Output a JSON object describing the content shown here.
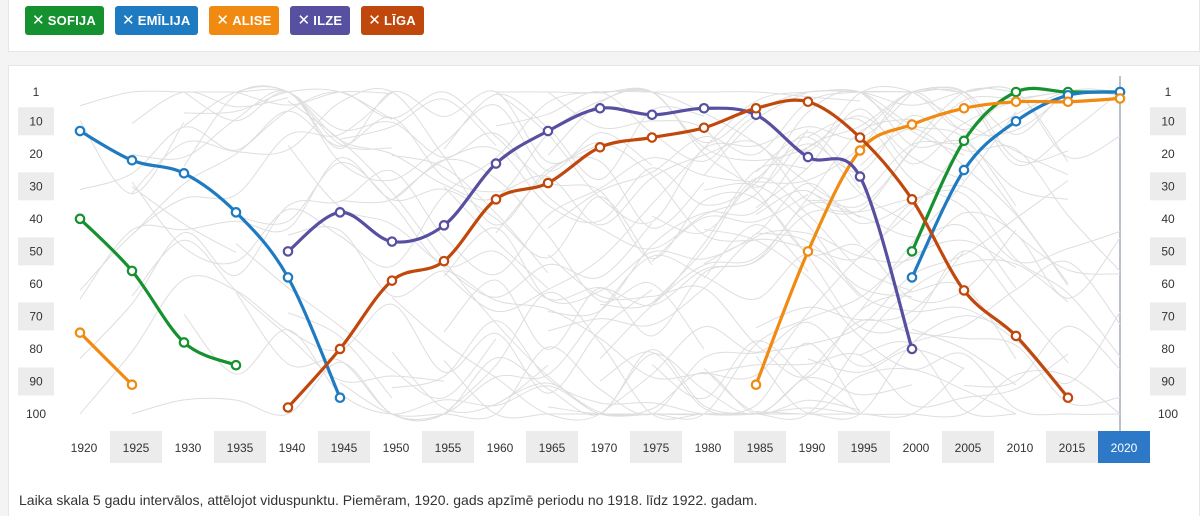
{
  "filters": [
    {
      "label": "SOFIJA",
      "color": "#16912f"
    },
    {
      "label": "EMĪLIJA",
      "color": "#1f7bc1"
    },
    {
      "label": "ALISE",
      "color": "#f08a10"
    },
    {
      "label": "ILZE",
      "color": "#574fa0"
    },
    {
      "label": "LĪGA",
      "color": "#c0480c"
    }
  ],
  "caption": "Laika skala 5 gadu intervālos, attēlojot viduspunktu. Piemēram, 1920. gads apzīmē periodu no 1918. līdz 1922. gadam.",
  "chart_data": {
    "type": "line",
    "x": [
      1920,
      1925,
      1930,
      1935,
      1940,
      1945,
      1950,
      1955,
      1960,
      1965,
      1970,
      1975,
      1980,
      1985,
      1990,
      1995,
      2000,
      2005,
      2010,
      2015,
      2020
    ],
    "x_tick_labels": [
      "1920",
      "1925",
      "1930",
      "1935",
      "1940",
      "1945",
      "1950",
      "1955",
      "1960",
      "1965",
      "1970",
      "1975",
      "1980",
      "1985",
      "1990",
      "1995",
      "2000",
      "2005",
      "2010",
      "2015",
      "2020"
    ],
    "highlighted_x": "2020",
    "y_tick_labels": [
      "1",
      "10",
      "20",
      "30",
      "40",
      "50",
      "60",
      "70",
      "80",
      "90",
      "100"
    ],
    "y_ticks": [
      1,
      10,
      20,
      30,
      40,
      50,
      60,
      70,
      80,
      90,
      100
    ],
    "ylim": [
      1,
      100
    ],
    "y_inverted": true,
    "background_lines": "many grey rank lines for other names",
    "series": [
      {
        "name": "SOFIJA",
        "color": "#16912f",
        "points": [
          [
            1920,
            40
          ],
          [
            1925,
            56
          ],
          [
            1930,
            78
          ],
          [
            1935,
            85
          ],
          [
            2000,
            50
          ],
          [
            2005,
            16
          ],
          [
            2010,
            1
          ],
          [
            2015,
            1
          ],
          [
            2020,
            1
          ]
        ]
      },
      {
        "name": "EMĪLIJA",
        "color": "#1f7bc1",
        "points": [
          [
            1920,
            13
          ],
          [
            1925,
            22
          ],
          [
            1930,
            26
          ],
          [
            1935,
            38
          ],
          [
            1940,
            58
          ],
          [
            1945,
            95
          ],
          [
            2000,
            58
          ],
          [
            2005,
            25
          ],
          [
            2010,
            10
          ],
          [
            2015,
            2
          ],
          [
            2020,
            1
          ]
        ]
      },
      {
        "name": "ALISE",
        "color": "#f08a10",
        "points": [
          [
            1920,
            75
          ],
          [
            1925,
            91
          ],
          [
            1985,
            91
          ],
          [
            1990,
            50
          ],
          [
            1995,
            19
          ],
          [
            2000,
            11
          ],
          [
            2005,
            6
          ],
          [
            2010,
            4
          ],
          [
            2015,
            4
          ],
          [
            2020,
            3
          ]
        ]
      },
      {
        "name": "ILZE",
        "color": "#574fa0",
        "points": [
          [
            1940,
            50
          ],
          [
            1945,
            38
          ],
          [
            1950,
            47
          ],
          [
            1955,
            42
          ],
          [
            1960,
            23
          ],
          [
            1965,
            13
          ],
          [
            1970,
            6
          ],
          [
            1975,
            8
          ],
          [
            1980,
            6
          ],
          [
            1985,
            8
          ],
          [
            1990,
            21
          ],
          [
            1995,
            27
          ],
          [
            2000,
            80
          ]
        ]
      },
      {
        "name": "LĪGA",
        "color": "#c0480c",
        "points": [
          [
            1940,
            98
          ],
          [
            1945,
            80
          ],
          [
            1950,
            59
          ],
          [
            1955,
            53
          ],
          [
            1960,
            34
          ],
          [
            1965,
            29
          ],
          [
            1970,
            18
          ],
          [
            1975,
            15
          ],
          [
            1980,
            12
          ],
          [
            1985,
            6
          ],
          [
            1990,
            4
          ],
          [
            1995,
            15
          ],
          [
            2000,
            34
          ],
          [
            2005,
            62
          ],
          [
            2010,
            76
          ],
          [
            2015,
            95
          ]
        ]
      }
    ]
  }
}
